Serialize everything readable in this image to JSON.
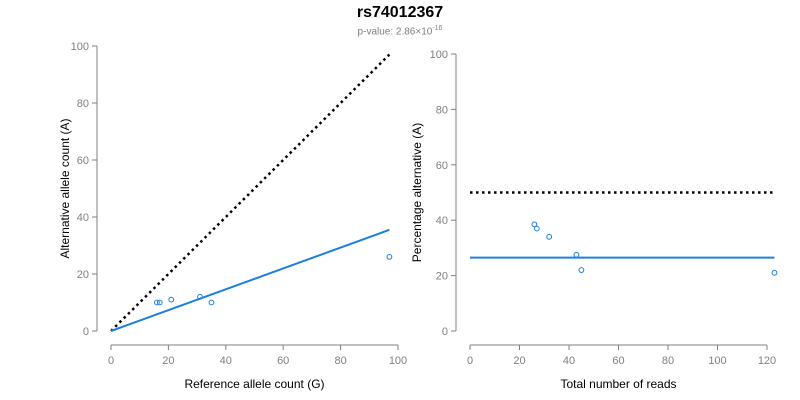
{
  "header": {
    "title": "rs74012367",
    "pvalue_prefix": "p-value: 2.86×10",
    "pvalue_exp": "-16"
  },
  "colors": {
    "series": "#1e7fdf",
    "reference": "#000000",
    "axis": "#808080"
  },
  "chart_data": [
    {
      "type": "scatter",
      "xlabel": "Reference allele count (G)",
      "ylabel": "Alternative allele count (A)",
      "xlim": [
        0,
        100
      ],
      "ylim": [
        0,
        100
      ],
      "xticks": [
        0,
        20,
        40,
        60,
        80,
        100
      ],
      "yticks": [
        0,
        20,
        40,
        60,
        80,
        100
      ],
      "points": [
        {
          "x": 16,
          "y": 10
        },
        {
          "x": 17,
          "y": 10
        },
        {
          "x": 21,
          "y": 11
        },
        {
          "x": 31,
          "y": 12
        },
        {
          "x": 35,
          "y": 10
        },
        {
          "x": 97,
          "y": 26
        }
      ],
      "fit_line": {
        "x1": 0,
        "y1": 0,
        "x2": 97,
        "y2": 35.5,
        "style": "solid"
      },
      "reference_line": {
        "x1": 0,
        "y1": 0,
        "x2": 97,
        "y2": 97,
        "style": "dotted"
      }
    },
    {
      "type": "scatter",
      "xlabel": "Total number of reads",
      "ylabel": "Percentage alternative (A)",
      "xlim": [
        0,
        120
      ],
      "ylim": [
        0,
        100
      ],
      "xticks": [
        0,
        20,
        40,
        60,
        80,
        100,
        120
      ],
      "yticks": [
        0,
        20,
        40,
        60,
        80,
        100
      ],
      "points": [
        {
          "x": 26,
          "y": 38.5
        },
        {
          "x": 27,
          "y": 37
        },
        {
          "x": 32,
          "y": 34
        },
        {
          "x": 43,
          "y": 27.5
        },
        {
          "x": 45,
          "y": 22
        },
        {
          "x": 123,
          "y": 21
        }
      ],
      "fit_line": {
        "x1": 0,
        "y1": 26.5,
        "x2": 123,
        "y2": 26.5,
        "style": "solid"
      },
      "reference_line": {
        "x1": 0,
        "y1": 50,
        "x2": 123,
        "y2": 50,
        "style": "dotted"
      }
    }
  ]
}
